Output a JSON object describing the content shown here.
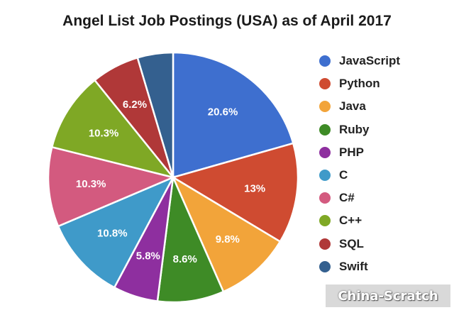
{
  "chart_data": {
    "type": "pie",
    "title": "Angel List Job Postings (USA) as of April 2017",
    "slices": [
      {
        "name": "JavaScript",
        "value": 20.6,
        "label": "20.6%",
        "color": "#3e6fcf"
      },
      {
        "name": "Python",
        "value": 13.0,
        "label": "13%",
        "color": "#cf4b31"
      },
      {
        "name": "Java",
        "value": 9.8,
        "label": "9.8%",
        "color": "#f2a43a"
      },
      {
        "name": "Ruby",
        "value": 8.6,
        "label": "8.6%",
        "color": "#3e8b26"
      },
      {
        "name": "PHP",
        "value": 5.8,
        "label": "5.8%",
        "color": "#8e2f9f"
      },
      {
        "name": "C",
        "value": 10.8,
        "label": "10.8%",
        "color": "#3f9ac9"
      },
      {
        "name": "C#",
        "value": 10.3,
        "label": "10.3%",
        "color": "#d35a7f"
      },
      {
        "name": "C++",
        "value": 10.3,
        "label": "10.3%",
        "color": "#7fa825"
      },
      {
        "name": "SQL",
        "value": 6.2,
        "label": "6.2%",
        "color": "#b03838"
      },
      {
        "name": "Swift",
        "value": 4.6,
        "label": "",
        "color": "#34608f"
      }
    ],
    "legend_position": "right"
  },
  "watermark": "China-Scratch"
}
